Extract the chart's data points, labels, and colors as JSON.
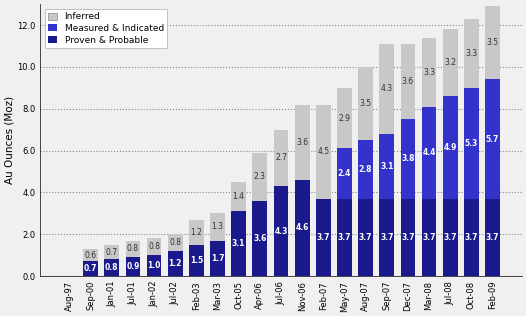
{
  "categories": [
    "Aug-97",
    "Sep-00",
    "Jan-01",
    "Jul-01",
    "Jan-02",
    "Jul-02",
    "Feb-03",
    "Mar-03",
    "Oct-05",
    "Apr-06",
    "Jul-06",
    "Nov-06",
    "Feb-07",
    "May-07",
    "Aug-07",
    "Sep-07",
    "Dec-07",
    "Mar-08",
    "Jul-08",
    "Oct-08",
    "Feb-09"
  ],
  "proven_probable": [
    0.0,
    0.7,
    0.8,
    0.9,
    1.0,
    1.2,
    1.5,
    1.7,
    3.1,
    3.6,
    4.3,
    4.6,
    3.7,
    3.7,
    3.7,
    3.7,
    3.7,
    3.7,
    3.7,
    3.7,
    3.7
  ],
  "measured_indicated": [
    0.0,
    0.0,
    0.0,
    0.0,
    0.0,
    0.0,
    0.0,
    0.0,
    0.0,
    0.0,
    0.0,
    0.0,
    0.0,
    2.4,
    2.8,
    3.1,
    3.8,
    4.4,
    4.9,
    5.3,
    5.7
  ],
  "inferred": [
    0.0,
    0.6,
    0.7,
    0.8,
    0.8,
    0.8,
    1.2,
    1.3,
    1.4,
    2.3,
    2.7,
    3.6,
    4.5,
    2.9,
    3.5,
    4.3,
    3.6,
    3.3,
    3.2,
    3.3,
    3.5
  ],
  "proven_color": "#1a1a8c",
  "measured_color": "#3333cc",
  "inferred_color": "#c8c8c8",
  "ylabel": "Au Ounces (Moz)",
  "ylim": [
    0,
    13
  ],
  "yticks": [
    0.0,
    2.0,
    4.0,
    6.0,
    8.0,
    10.0,
    12.0
  ],
  "axis_label_fontsize": 7.5,
  "value_fontsize": 5.5,
  "tick_fontsize": 6.0,
  "legend_fontsize": 6.5,
  "bar_width": 0.7,
  "figsize": [
    5.26,
    3.16
  ],
  "dpi": 100
}
